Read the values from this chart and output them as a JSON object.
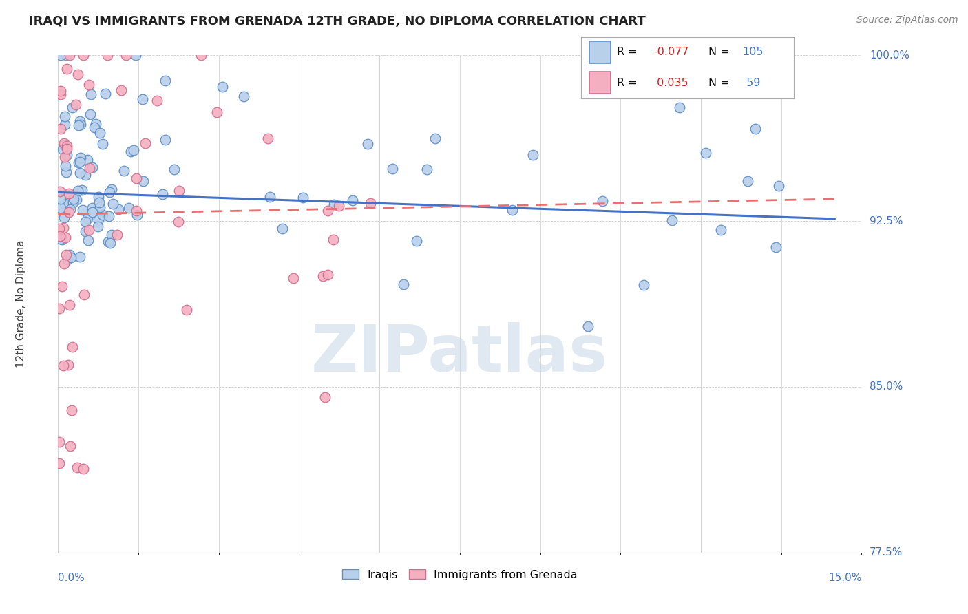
{
  "title": "IRAQI VS IMMIGRANTS FROM GRENADA 12TH GRADE, NO DIPLOMA CORRELATION CHART",
  "source_text": "Source: ZipAtlas.com",
  "xmin": 0.0,
  "xmax": 15.0,
  "ymin": 77.5,
  "ymax": 100.0,
  "y_ticks": [
    77.5,
    85.0,
    92.5,
    100.0
  ],
  "blue_fill": "#b8d0ea",
  "blue_edge": "#6090c8",
  "pink_fill": "#f4b0c0",
  "pink_edge": "#d07090",
  "blue_line": "#4472c4",
  "pink_line": "#e87070",
  "legend_blue_fill": "#b8d0ea",
  "legend_blue_edge": "#6090c8",
  "legend_pink_fill": "#f4b0c0",
  "legend_pink_edge": "#d07090",
  "r1": "-0.077",
  "n1": "105",
  "r2": "0.035",
  "n2": "59",
  "watermark": "ZIPatlas",
  "iraq_trend_x0": 0.0,
  "iraq_trend_x1": 14.5,
  "iraq_trend_y0": 93.8,
  "iraq_trend_y1": 92.6,
  "gren_trend_x0": 0.0,
  "gren_trend_x1": 14.5,
  "gren_trend_y0": 92.8,
  "gren_trend_y1": 93.5
}
